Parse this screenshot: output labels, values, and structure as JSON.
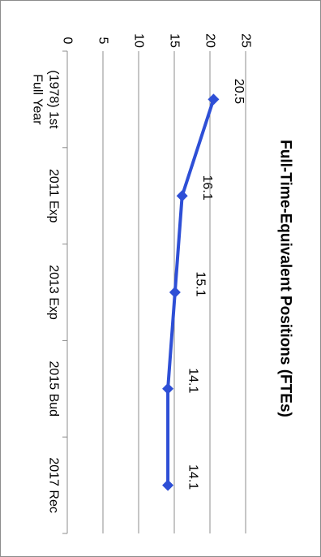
{
  "chart_data": {
    "type": "line",
    "title": "Full-Time-Equivalent Positions (FTEs)",
    "categories": [
      [
        "(1978) 1st",
        "Full Year"
      ],
      [
        "2011 Exp"
      ],
      [
        "2013 Exp"
      ],
      [
        "2015 Bud"
      ],
      [
        "2017 Rec"
      ]
    ],
    "series": [
      {
        "values": [
          20.5,
          16.1,
          15.1,
          14.1,
          14.1
        ]
      }
    ],
    "data_labels": [
      "20.5",
      "16.1",
      "15.1",
      "14.1",
      "14.1"
    ],
    "y_ticks": [
      "0",
      "5",
      "10",
      "15",
      "20",
      "25"
    ],
    "ylim": [
      0,
      25
    ],
    "grid": true,
    "series_color": "#2e4fd6",
    "orientation": "rotated-90-clockwise"
  }
}
